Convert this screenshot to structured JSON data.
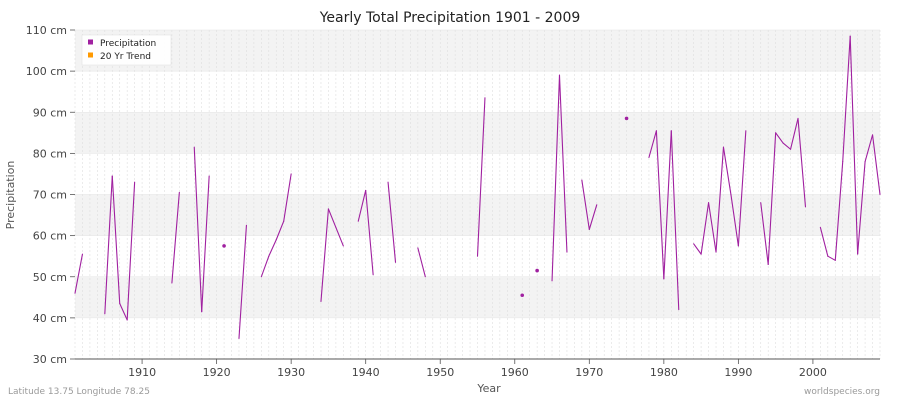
{
  "chart_data": {
    "type": "line",
    "title": "Yearly Total Precipitation 1901 - 2009",
    "xlabel": "Year",
    "ylabel": "Precipitation",
    "xlim": [
      1901,
      2009
    ],
    "ylim": [
      30,
      110
    ],
    "x_ticks": [
      1910,
      1920,
      1930,
      1940,
      1950,
      1960,
      1970,
      1980,
      1990,
      2000
    ],
    "y_ticks": [
      30,
      40,
      50,
      60,
      70,
      80,
      90,
      100,
      110
    ],
    "y_tick_labels": [
      "30 cm",
      "40 cm",
      "50 cm",
      "60 cm",
      "70 cm",
      "80 cm",
      "90 cm",
      "100 cm",
      "110 cm"
    ],
    "grid": true,
    "legend_position": "top-left",
    "series": [
      {
        "name": "Precipitation",
        "color": "#a020a0",
        "points": [
          [
            1901,
            46.0
          ],
          [
            1902,
            55.5
          ],
          [
            1903,
            null
          ],
          [
            1904,
            null
          ],
          [
            1905,
            41.0
          ],
          [
            1906,
            74.5
          ],
          [
            1907,
            43.5
          ],
          [
            1908,
            39.5
          ],
          [
            1909,
            73.0
          ],
          [
            1910,
            null
          ],
          [
            1911,
            null
          ],
          [
            1912,
            null
          ],
          [
            1913,
            null
          ],
          [
            1914,
            48.5
          ],
          [
            1915,
            70.5
          ],
          [
            1916,
            null
          ],
          [
            1917,
            81.5
          ],
          [
            1918,
            41.5
          ],
          [
            1919,
            74.5
          ],
          [
            1920,
            null
          ],
          [
            1921,
            57.5
          ],
          [
            1922,
            null
          ],
          [
            1923,
            35.0
          ],
          [
            1924,
            62.5
          ],
          [
            1925,
            null
          ],
          [
            1926,
            50.0
          ],
          [
            1927,
            55.0
          ],
          [
            1928,
            59.0
          ],
          [
            1929,
            63.5
          ],
          [
            1930,
            75.0
          ],
          [
            1931,
            null
          ],
          [
            1932,
            null
          ],
          [
            1933,
            null
          ],
          [
            1934,
            44.0
          ],
          [
            1935,
            66.5
          ],
          [
            1936,
            62.0
          ],
          [
            1937,
            57.5
          ],
          [
            1938,
            null
          ],
          [
            1939,
            63.5
          ],
          [
            1940,
            71.0
          ],
          [
            1941,
            50.5
          ],
          [
            1942,
            null
          ],
          [
            1943,
            73.0
          ],
          [
            1944,
            53.5
          ],
          [
            1945,
            null
          ],
          [
            1946,
            null
          ],
          [
            1947,
            57.0
          ],
          [
            1948,
            50.0
          ],
          [
            1949,
            null
          ],
          [
            1950,
            null
          ],
          [
            1951,
            null
          ],
          [
            1952,
            null
          ],
          [
            1953,
            null
          ],
          [
            1954,
            null
          ],
          [
            1955,
            55.0
          ],
          [
            1956,
            93.5
          ],
          [
            1957,
            null
          ],
          [
            1958,
            null
          ],
          [
            1959,
            null
          ],
          [
            1960,
            null
          ],
          [
            1961,
            45.5
          ],
          [
            1962,
            null
          ],
          [
            1963,
            51.5
          ],
          [
            1964,
            null
          ],
          [
            1965,
            49.0
          ],
          [
            1966,
            99.0
          ],
          [
            1967,
            56.0
          ],
          [
            1968,
            null
          ],
          [
            1969,
            73.5
          ],
          [
            1970,
            61.5
          ],
          [
            1971,
            67.5
          ],
          [
            1972,
            null
          ],
          [
            1973,
            null
          ],
          [
            1974,
            null
          ],
          [
            1975,
            88.5
          ],
          [
            1976,
            null
          ],
          [
            1977,
            null
          ],
          [
            1978,
            79.0
          ],
          [
            1979,
            85.5
          ],
          [
            1980,
            49.5
          ],
          [
            1981,
            85.5
          ],
          [
            1982,
            42.0
          ],
          [
            1983,
            null
          ],
          [
            1984,
            58.0
          ],
          [
            1985,
            55.5
          ],
          [
            1986,
            68.0
          ],
          [
            1987,
            56.0
          ],
          [
            1988,
            81.5
          ],
          [
            1989,
            70.0
          ],
          [
            1990,
            57.5
          ],
          [
            1991,
            85.5
          ],
          [
            1992,
            null
          ],
          [
            1993,
            68.0
          ],
          [
            1994,
            53.0
          ],
          [
            1995,
            85.0
          ],
          [
            1996,
            82.5
          ],
          [
            1997,
            81.0
          ],
          [
            1998,
            88.5
          ],
          [
            1999,
            67.0
          ],
          [
            2000,
            null
          ],
          [
            2001,
            62.0
          ],
          [
            2002,
            55.0
          ],
          [
            2003,
            54.0
          ],
          [
            2004,
            78.0
          ],
          [
            2005,
            108.5
          ],
          [
            2006,
            55.5
          ],
          [
            2007,
            78.0
          ],
          [
            2008,
            84.5
          ],
          [
            2009,
            70.0
          ]
        ]
      },
      {
        "name": "20 Yr Trend",
        "color": "#ff9900",
        "points": []
      }
    ],
    "footer_left": "Latitude 13.75 Longitude 78.25",
    "footer_right": "worldspecies.org"
  }
}
